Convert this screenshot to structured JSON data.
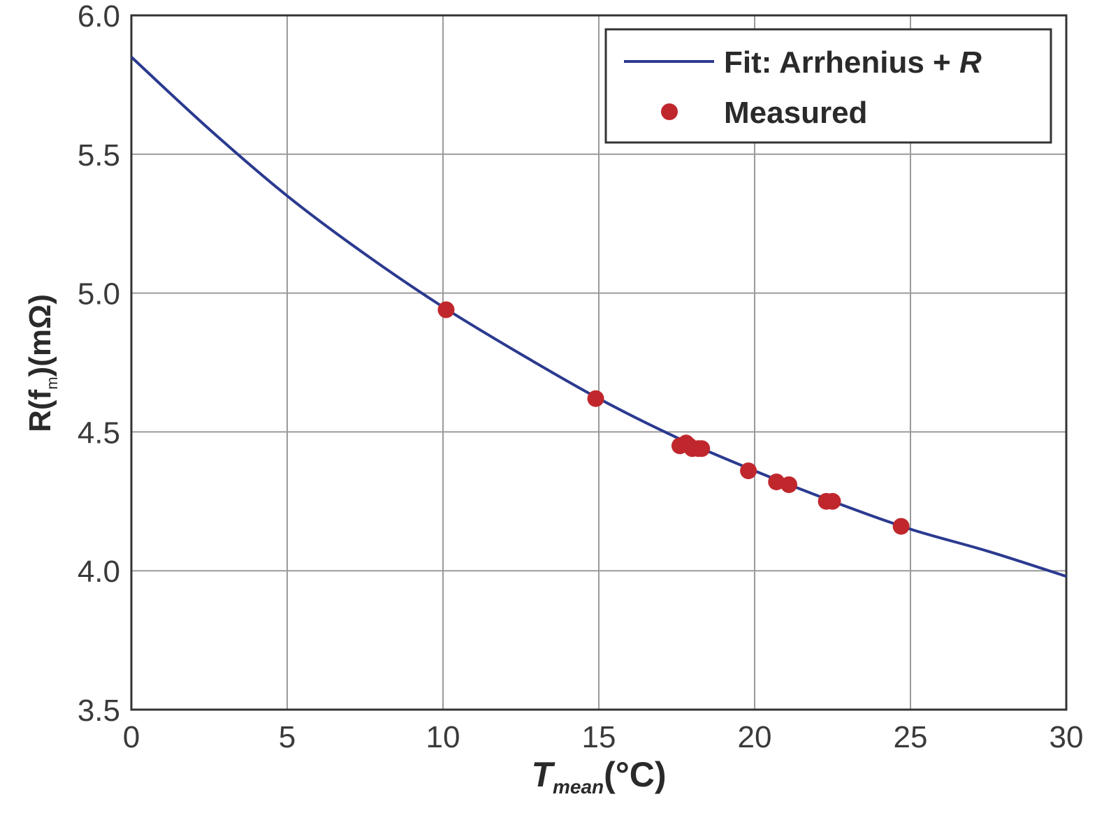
{
  "chart_data": {
    "type": "line",
    "xlabel": {
      "main": "T",
      "subscript": "mean",
      "unit": "(°C)"
    },
    "ylabel": {
      "prefix": "R(f",
      "subscript": "m",
      "suffix": ")(mΩ)"
    },
    "xlim": [
      0,
      30
    ],
    "ylim": [
      3.5,
      6.0
    ],
    "xticks": [
      0,
      5,
      10,
      15,
      20,
      25,
      30
    ],
    "xtick_labels": [
      "0",
      "5",
      "10",
      "15",
      "20",
      "25",
      "30"
    ],
    "yticks": [
      3.5,
      4.0,
      4.5,
      5.0,
      5.5,
      6.0
    ],
    "ytick_labels": [
      "3.5",
      "4.0",
      "4.5",
      "5.0",
      "5.5",
      "6.0"
    ],
    "grid": true,
    "legend_position": "top-right",
    "series": [
      {
        "name": "Fit: Arrhenius + R",
        "legend_label": {
          "text": "Fit: Arrhenius + ",
          "italic": "R"
        },
        "kind": "line",
        "color": "#2b3a8f",
        "x": [
          0,
          2.5,
          5,
          7.5,
          10,
          12.5,
          15,
          17.5,
          20,
          22.5,
          25,
          27.5,
          30
        ],
        "y": [
          5.85,
          5.59,
          5.35,
          5.14,
          4.95,
          4.78,
          4.62,
          4.48,
          4.36,
          4.25,
          4.15,
          4.07,
          3.98
        ]
      },
      {
        "name": "Measured",
        "legend_label": {
          "text": "Measured",
          "italic": ""
        },
        "kind": "scatter",
        "color": "#c0272d",
        "x": [
          10.1,
          14.9,
          17.6,
          17.8,
          17.9,
          18.0,
          18.2,
          18.3,
          19.8,
          20.7,
          21.1,
          22.3,
          22.5,
          24.7
        ],
        "y": [
          4.94,
          4.62,
          4.45,
          4.46,
          4.45,
          4.44,
          4.44,
          4.44,
          4.36,
          4.32,
          4.31,
          4.25,
          4.25,
          4.16
        ]
      }
    ]
  }
}
